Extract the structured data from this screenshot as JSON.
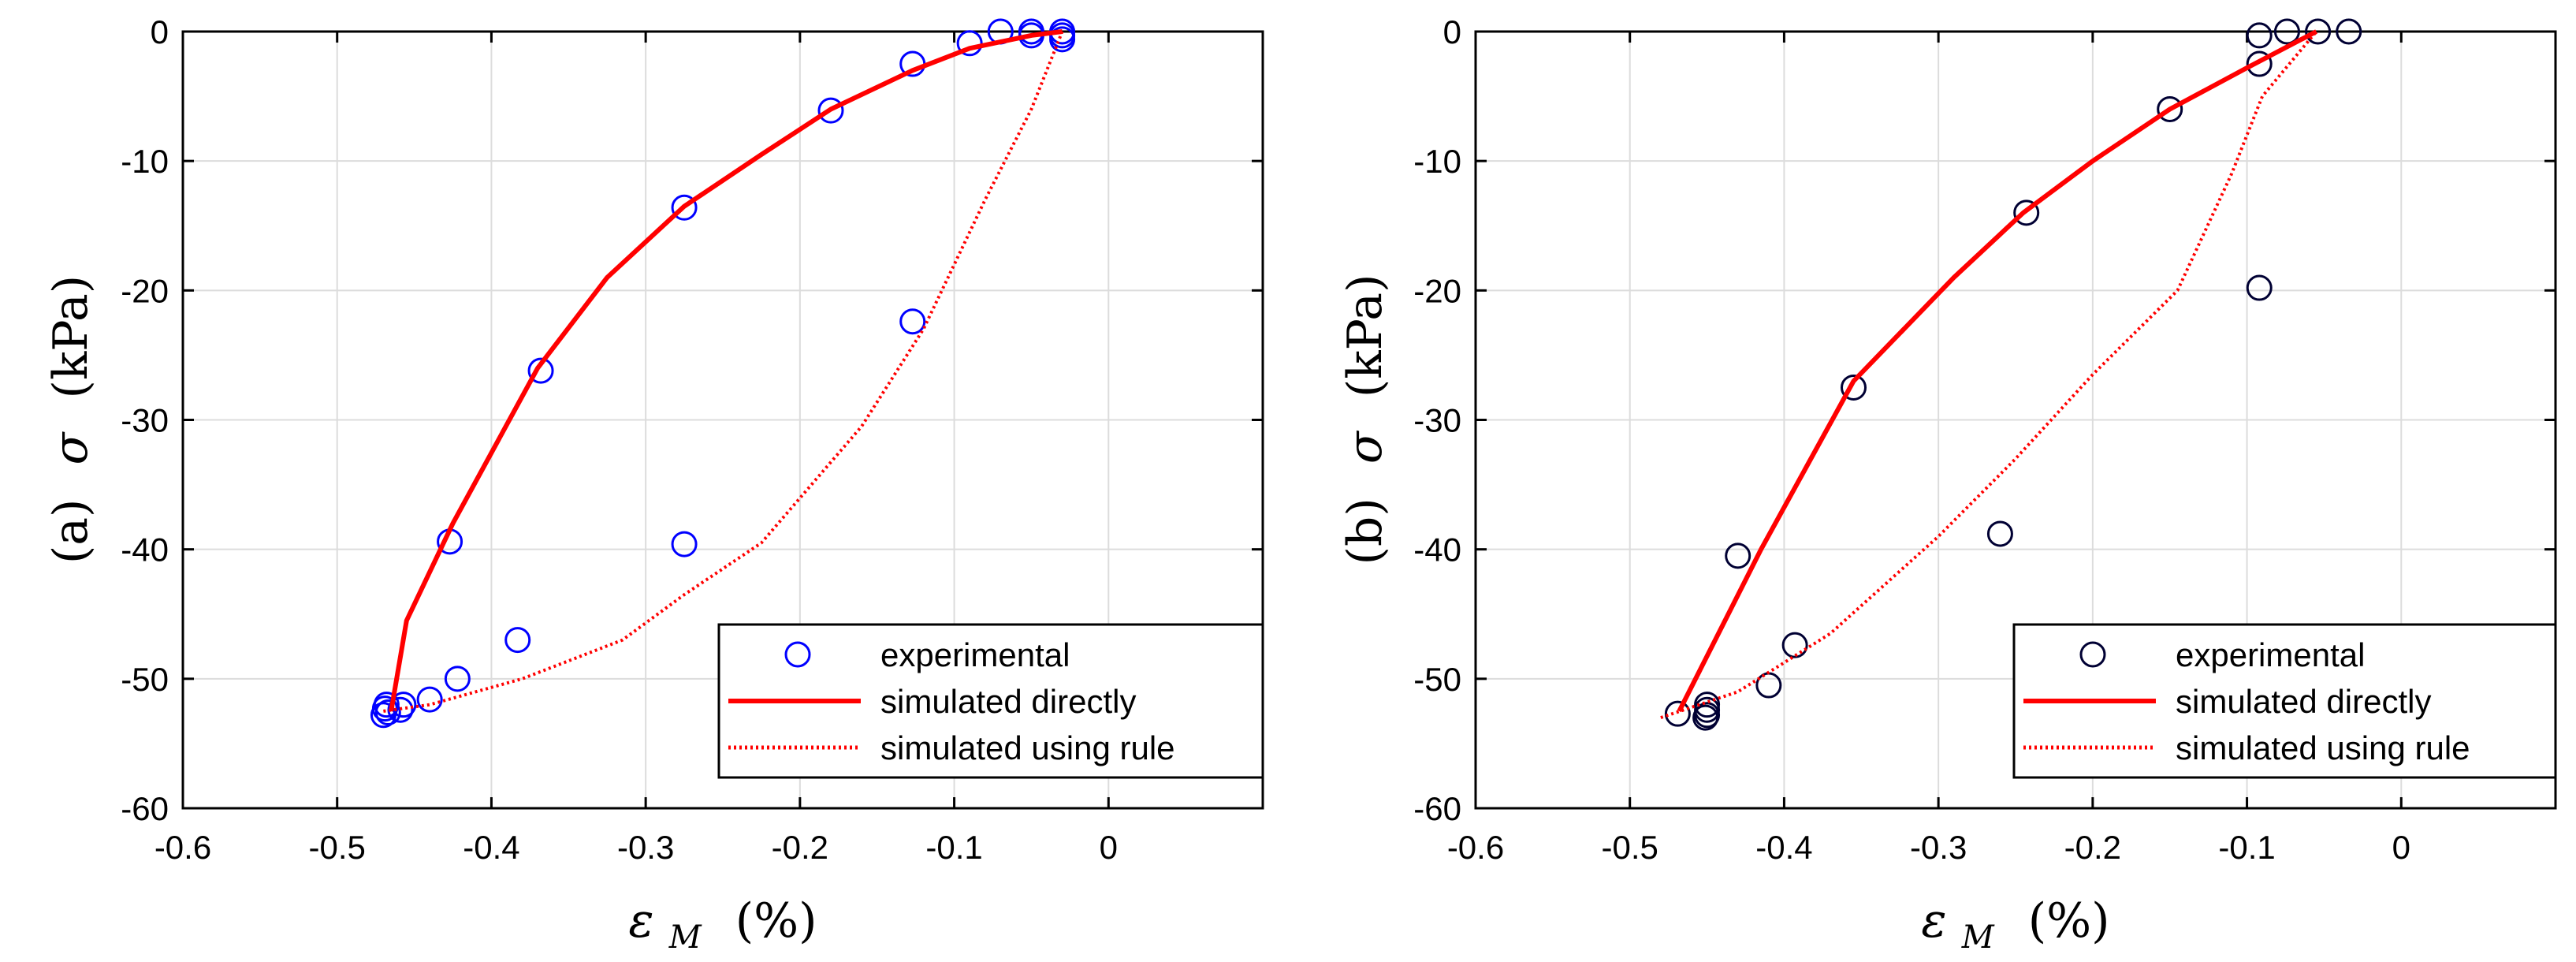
{
  "chart_data": [
    {
      "type": "scatter",
      "panel_label": "(a)",
      "ylabel_symbol": "σ",
      "ylabel_unit": "(kPa)",
      "xlabel_symbol": "ε",
      "xlabel_subscript": "M",
      "xlabel_unit": "(%)",
      "xlim": [
        -0.6,
        0.1
      ],
      "ylim": [
        -60,
        0
      ],
      "xticks": [
        -0.6,
        -0.5,
        -0.4,
        -0.3,
        -0.2,
        -0.1,
        0
      ],
      "xtick_labels": [
        "-0.6",
        "-0.5",
        "-0.4",
        "-0.3",
        "-0.2",
        "-0.1",
        "0"
      ],
      "yticks": [
        0,
        -10,
        -20,
        -30,
        -40,
        -50,
        -60
      ],
      "ytick_labels": [
        "0",
        "-10",
        "-20",
        "-30",
        "-40",
        "-50",
        "-60"
      ],
      "grid": true,
      "legend_position": "bottom-right",
      "series": [
        {
          "name": "experimental",
          "kind": "markers",
          "color": "#0000ff",
          "x": [
            -0.03,
            -0.03,
            -0.03,
            -0.05,
            -0.05,
            -0.07,
            -0.09,
            -0.127,
            -0.18,
            -0.275,
            -0.368,
            -0.427,
            -0.127,
            -0.275,
            -0.383,
            -0.422,
            -0.44,
            -0.457,
            -0.459,
            -0.468,
            -0.469,
            -0.467,
            -0.47
          ],
          "y": [
            0,
            -0.3,
            -0.6,
            0,
            -0.3,
            0,
            -0.9,
            -2.5,
            -6.1,
            -13.6,
            -26.2,
            -39.4,
            -22.4,
            -39.6,
            -47,
            -50,
            -51.6,
            -52,
            -52.4,
            -52,
            -52.3,
            -52.6,
            -52.8
          ]
        },
        {
          "name": "simulated directly",
          "kind": "solid",
          "color": "#ff0000",
          "x": [
            -0.465,
            -0.455,
            -0.425,
            -0.37,
            -0.325,
            -0.275,
            -0.225,
            -0.18,
            -0.127,
            -0.09,
            -0.05,
            -0.03
          ],
          "y": [
            -52.5,
            -45.5,
            -38,
            -26,
            -19,
            -13.5,
            -9.5,
            -6,
            -3,
            -1.3,
            -0.3,
            0
          ]
        },
        {
          "name": "simulated using rule",
          "kind": "dotted",
          "color": "#ff0000",
          "x": [
            -0.47,
            -0.44,
            -0.38,
            -0.315,
            -0.275,
            -0.225,
            -0.16,
            -0.12,
            -0.08,
            -0.05,
            -0.03
          ],
          "y": [
            -52.5,
            -52,
            -50,
            -47,
            -43.5,
            -39.5,
            -30.5,
            -23,
            -13,
            -6,
            0
          ]
        }
      ]
    },
    {
      "type": "scatter",
      "panel_label": "(b)",
      "ylabel_symbol": "σ",
      "ylabel_unit": "(kPa)",
      "xlabel_symbol": "ε",
      "xlabel_subscript": "M",
      "xlabel_unit": "(%)",
      "xlim": [
        -0.6,
        0.1
      ],
      "ylim": [
        -60,
        0
      ],
      "xticks": [
        -0.6,
        -0.5,
        -0.4,
        -0.3,
        -0.2,
        -0.1,
        0
      ],
      "xtick_labels": [
        "-0.6",
        "-0.5",
        "-0.4",
        "-0.3",
        "-0.2",
        "-0.1",
        "0"
      ],
      "yticks": [
        0,
        -10,
        -20,
        -30,
        -40,
        -50,
        -60
      ],
      "ytick_labels": [
        "0",
        "-10",
        "-20",
        "-30",
        "-40",
        "-50",
        "-60"
      ],
      "grid": true,
      "legend_position": "bottom-right",
      "series": [
        {
          "name": "experimental",
          "kind": "markers",
          "color": "#000033",
          "x": [
            -0.034,
            -0.054,
            -0.074,
            -0.092,
            -0.092,
            -0.15,
            -0.243,
            -0.355,
            -0.43,
            -0.26,
            -0.393,
            -0.41,
            -0.45,
            -0.45,
            -0.45,
            -0.451,
            -0.469,
            -0.092
          ],
          "y": [
            0,
            0,
            0,
            -0.3,
            -2.5,
            -6,
            -14,
            -27.5,
            -40.5,
            -38.8,
            -47.4,
            -50.5,
            -52,
            -52.4,
            -52.8,
            -53,
            -52.7,
            -19.8
          ]
        },
        {
          "name": "simulated directly",
          "kind": "solid",
          "color": "#ff0000",
          "x": [
            -0.468,
            -0.415,
            -0.355,
            -0.29,
            -0.245,
            -0.2,
            -0.15,
            -0.1,
            -0.055
          ],
          "y": [
            -52.5,
            -40,
            -27,
            -19,
            -14,
            -10,
            -6,
            -2.8,
            0
          ]
        },
        {
          "name": "simulated using rule",
          "kind": "dotted",
          "color": "#ff0000",
          "x": [
            -0.48,
            -0.43,
            -0.37,
            -0.3,
            -0.25,
            -0.2,
            -0.145,
            -0.11,
            -0.09,
            -0.055
          ],
          "y": [
            -53,
            -51,
            -46.5,
            -39,
            -33,
            -26.5,
            -20,
            -11,
            -5,
            0
          ]
        }
      ]
    }
  ]
}
